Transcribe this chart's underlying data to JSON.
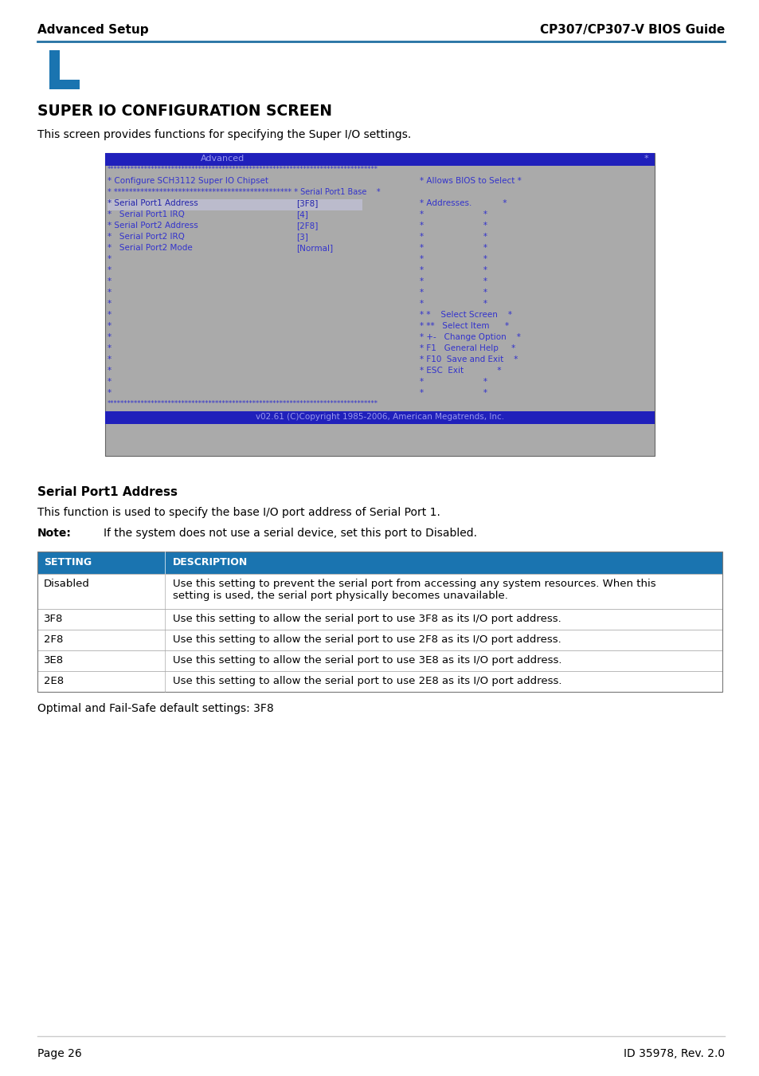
{
  "header_left": "Advanced Setup",
  "header_right": "CP307/CP307-V BIOS Guide",
  "section_title": "SUPER IO CONFIGURATION SCREEN",
  "section_desc": "This screen provides functions for specifying the Super I/O settings.",
  "bios_title": "Advanced",
  "bios_footer": "v02.61 (C)Copyright 1985-2006, American Megatrends, Inc.",
  "subsection_title": "Serial Port1 Address",
  "subsection_desc": "This function is used to specify the base I/O port address of Serial Port 1.",
  "note_label": "Note:",
  "note_text": "If the system does not use a serial device, set this port to Disabled.",
  "table_header": [
    "SETTING",
    "DESCRIPTION"
  ],
  "table_rows": [
    [
      "Disabled",
      "Use this setting to prevent the serial port from accessing any system resources. When this\nsetting is used, the serial port physically becomes unavailable."
    ],
    [
      "3F8",
      "Use this setting to allow the serial port to use 3F8 as its I/O port address."
    ],
    [
      "2F8",
      "Use this setting to allow the serial port to use 2F8 as its I/O port address."
    ],
    [
      "3E8",
      "Use this setting to allow the serial port to use 3E8 as its I/O port address."
    ],
    [
      "2E8",
      "Use this setting to allow the serial port to use 2E8 as its I/O port address."
    ]
  ],
  "footer_note": "Optimal and Fail-Safe default settings: 3F8",
  "page_left": "Page 26",
  "page_right": "ID 35978, Rev. 2.0",
  "bios_bg": "#aaaaaa",
  "bios_header_bg": "#2020bb",
  "bios_text_color": "#3333cc",
  "bios_highlight_bg": "#bbbbcc",
  "table_header_bg": "#1a74b0",
  "line_blue": "#2471a3",
  "accent_blue": "#1a74b0"
}
